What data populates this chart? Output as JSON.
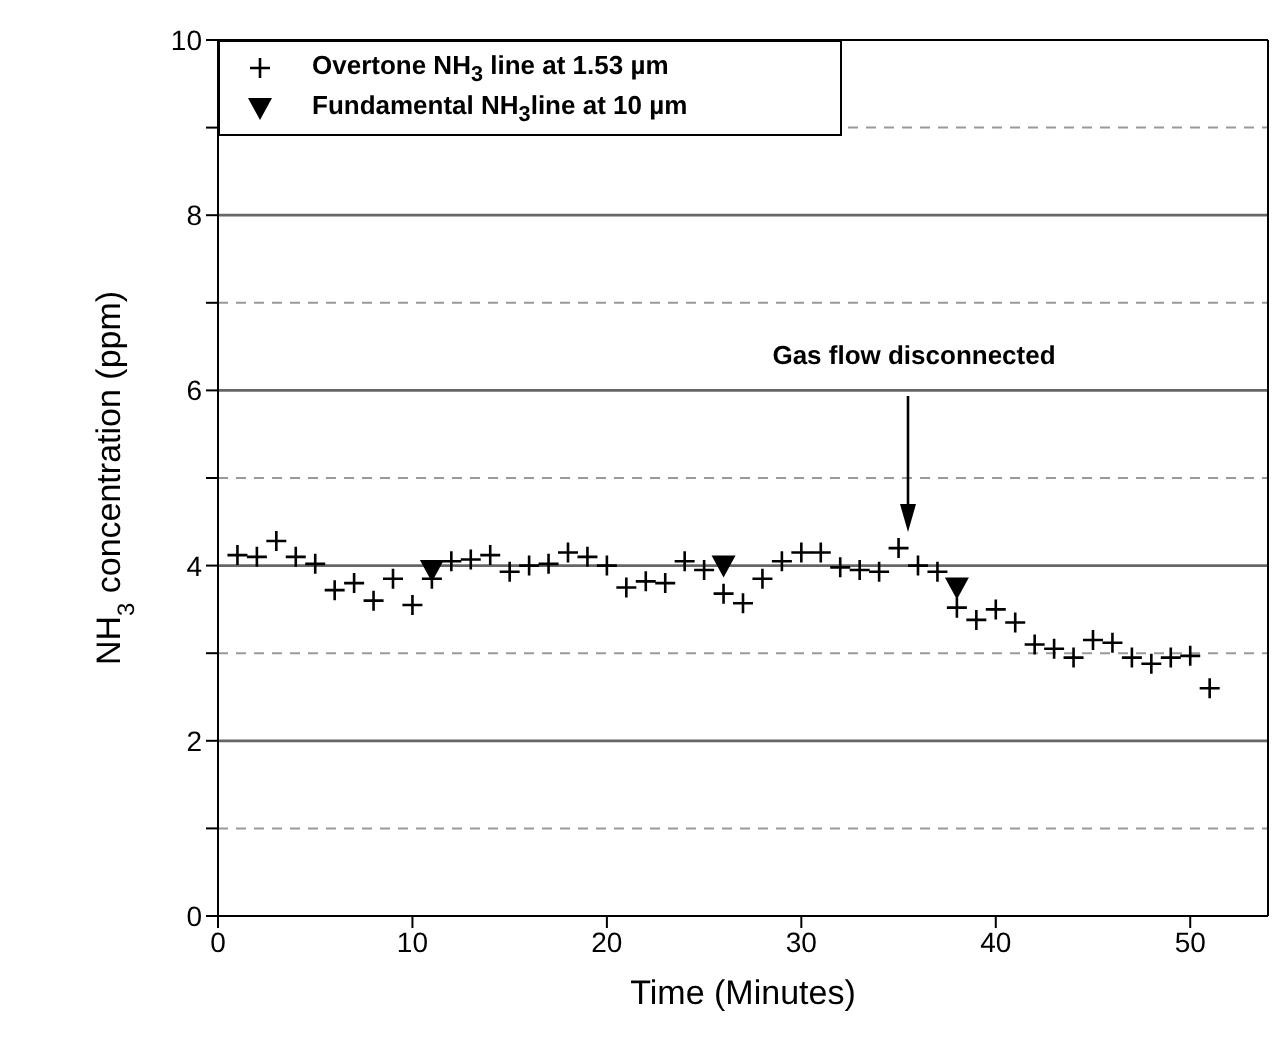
{
  "chart_data": {
    "type": "scatter",
    "xlabel": "Time (Minutes)",
    "ylabel": "NH$_{3}$ concentration (ppm)",
    "xlim": [
      0,
      54
    ],
    "xticks": [
      0,
      10,
      20,
      30,
      40,
      50
    ],
    "ylim": [
      0,
      10
    ],
    "yticks": [
      0,
      {
        "value": 1,
        "label": null
      },
      2,
      {
        "value": 3,
        "label": null
      },
      4,
      {
        "value": 5,
        "label": null
      },
      6,
      {
        "value": 7,
        "label": null
      },
      8,
      {
        "value": 9,
        "label": null
      },
      10
    ],
    "grid": "y",
    "legend": "top left",
    "annotations": [
      "Gas flow disconnected"
    ],
    "series": [
      {
        "name": "Overtone NH$_{3}$ line at 1.53 µm",
        "color": "#000000",
        "marker": "cross",
        "x": [
          1,
          2,
          3,
          4,
          5,
          6,
          7,
          8,
          9,
          10,
          11,
          12,
          13,
          14,
          15,
          16,
          17,
          18,
          19,
          20,
          21,
          22,
          23,
          24,
          25,
          26,
          27,
          28,
          29,
          30,
          31,
          32,
          33,
          34,
          35,
          36,
          37,
          38,
          39,
          40,
          41,
          42,
          43,
          44,
          45,
          46,
          47,
          48,
          49,
          50,
          51
        ],
        "values": [
          4.12,
          4.1,
          4.28,
          4.1,
          4.02,
          3.72,
          3.8,
          3.6,
          3.85,
          3.55,
          3.85,
          4.05,
          4.07,
          4.12,
          3.93,
          4.0,
          4.02,
          4.15,
          4.1,
          4.0,
          3.75,
          3.82,
          3.8,
          4.05,
          3.95,
          3.68,
          3.57,
          3.85,
          4.05,
          4.15,
          4.15,
          3.98,
          3.95,
          3.93,
          4.2,
          4.0,
          3.93,
          3.52,
          3.38,
          3.5,
          3.35,
          3.1,
          3.05,
          2.95,
          3.15,
          3.12,
          2.95,
          2.88,
          2.95,
          2.97,
          2.6
        ]
      },
      {
        "name": "Fundamental NH$_{3}$line at 10 µm",
        "color": "#000000",
        "marker": "triangle",
        "x": [
          11,
          26,
          38
        ],
        "values": [
          3.95,
          4.0,
          3.75
        ]
      }
    ]
  }
}
